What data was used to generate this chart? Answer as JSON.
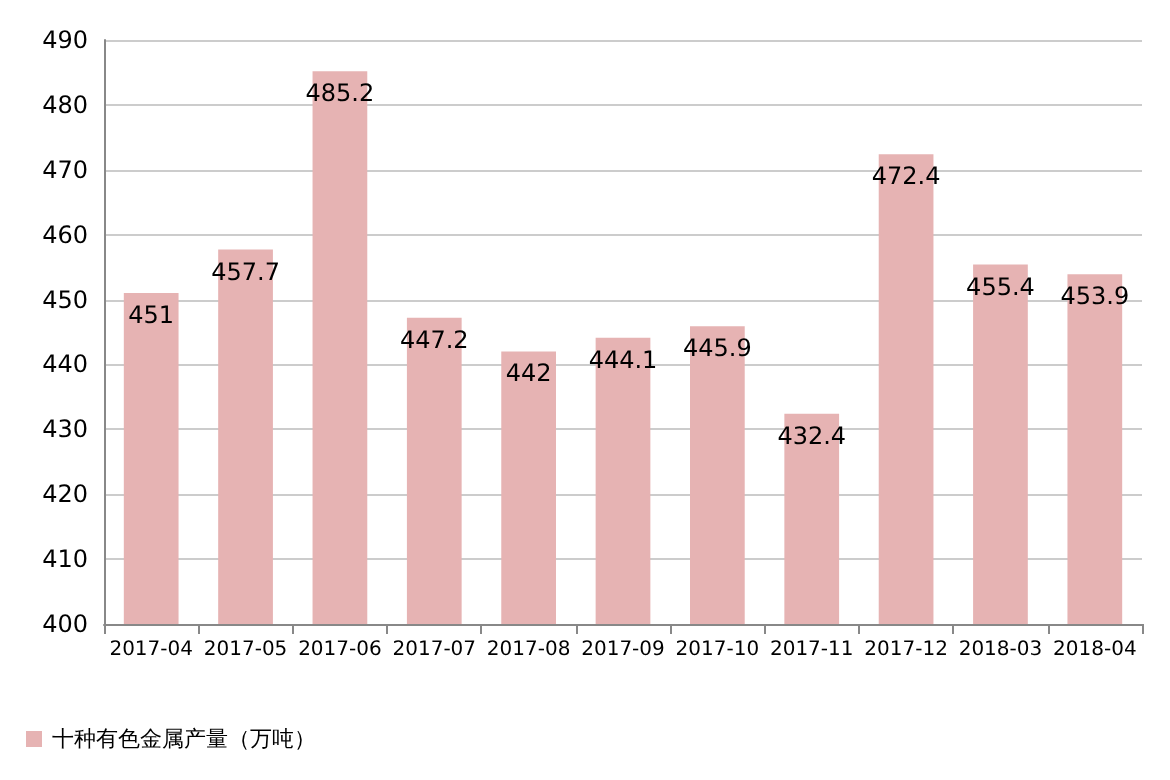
{
  "chart_data": {
    "type": "bar",
    "categories": [
      "2017-04",
      "2017-05",
      "2017-06",
      "2017-07",
      "2017-08",
      "2017-09",
      "2017-10",
      "2017-11",
      "2017-12",
      "2018-03",
      "2018-04"
    ],
    "series": [
      {
        "name": "十种有色金属产量（万吨）",
        "color": "#e6b3b3",
        "values": [
          451,
          457.7,
          485.2,
          447.2,
          442,
          444.1,
          445.9,
          432.4,
          472.4,
          455.4,
          453.9
        ]
      }
    ],
    "ylim": [
      400,
      490
    ],
    "yticks": [
      400,
      410,
      420,
      430,
      440,
      450,
      460,
      470,
      480,
      490
    ],
    "grid": "y",
    "legend": "bottom left",
    "data_labels": true
  }
}
